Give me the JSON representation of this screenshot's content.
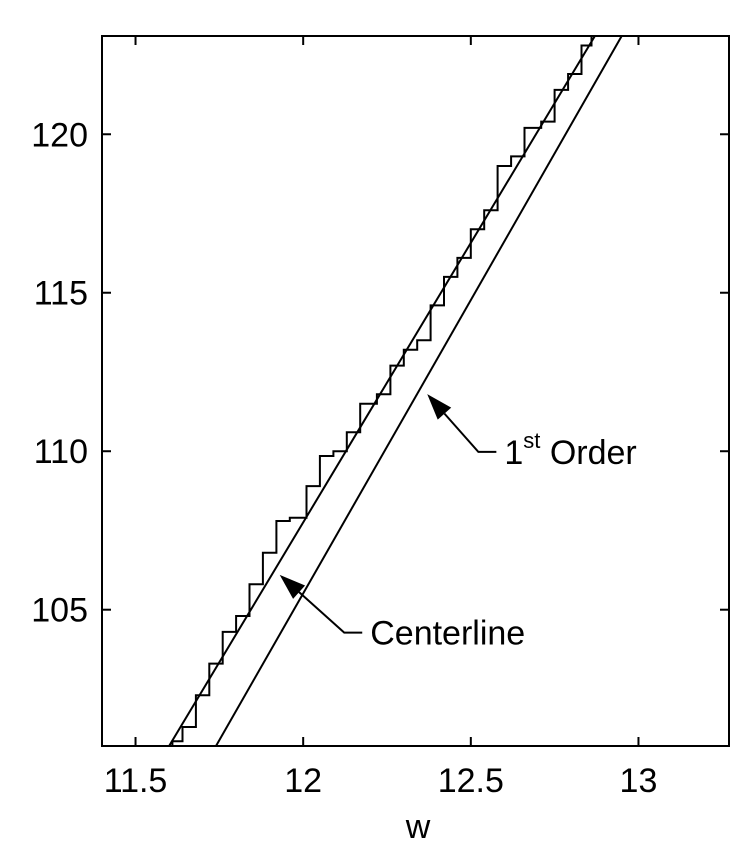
{
  "chart_data": {
    "type": "line",
    "title": "",
    "xlabel": "w",
    "ylabel": "",
    "xlim": [
      11.4,
      13.27
    ],
    "ylim": [
      100.7,
      123.1
    ],
    "x_ticks": [
      11.5,
      12,
      12.5,
      13
    ],
    "x_tick_labels": [
      "11.5",
      "12",
      "12.5",
      "13"
    ],
    "y_ticks": [
      105,
      110,
      115,
      120
    ],
    "y_tick_labels": [
      "105",
      "110",
      "115",
      "120"
    ],
    "grid": false,
    "legend": "none",
    "series": [
      {
        "style": "step",
        "points": [
          [
            11.61,
            100.7
          ],
          [
            11.61,
            100.85
          ],
          [
            11.64,
            100.85
          ],
          [
            11.64,
            101.3
          ],
          [
            11.68,
            101.3
          ],
          [
            11.68,
            102.3
          ],
          [
            11.72,
            102.3
          ],
          [
            11.72,
            103.3
          ],
          [
            11.76,
            103.3
          ],
          [
            11.76,
            104.3
          ],
          [
            11.8,
            104.3
          ],
          [
            11.8,
            104.8
          ],
          [
            11.84,
            104.8
          ],
          [
            11.84,
            105.8
          ],
          [
            11.88,
            105.8
          ],
          [
            11.88,
            106.8
          ],
          [
            11.92,
            106.8
          ],
          [
            11.92,
            107.8
          ],
          [
            11.96,
            107.8
          ],
          [
            11.96,
            107.9
          ],
          [
            12.01,
            107.9
          ],
          [
            12.01,
            108.9
          ],
          [
            12.05,
            108.9
          ],
          [
            12.05,
            109.85
          ],
          [
            12.09,
            109.85
          ],
          [
            12.09,
            110.0
          ],
          [
            12.13,
            110.0
          ],
          [
            12.13,
            110.6
          ],
          [
            12.17,
            110.6
          ],
          [
            12.17,
            111.5
          ],
          [
            12.22,
            111.5
          ],
          [
            12.22,
            111.8
          ],
          [
            12.26,
            111.8
          ],
          [
            12.26,
            112.7
          ],
          [
            12.3,
            112.7
          ],
          [
            12.3,
            113.2
          ],
          [
            12.34,
            113.2
          ],
          [
            12.34,
            113.5
          ],
          [
            12.38,
            113.5
          ],
          [
            12.38,
            114.6
          ],
          [
            12.42,
            114.6
          ],
          [
            12.42,
            115.5
          ],
          [
            12.46,
            115.5
          ],
          [
            12.46,
            116.1
          ],
          [
            12.5,
            116.1
          ],
          [
            12.5,
            117.0
          ],
          [
            12.54,
            117.0
          ],
          [
            12.54,
            117.6
          ],
          [
            12.58,
            117.6
          ],
          [
            12.58,
            119.0
          ],
          [
            12.62,
            119.0
          ],
          [
            12.62,
            119.3
          ],
          [
            12.66,
            119.3
          ],
          [
            12.66,
            120.2
          ],
          [
            12.71,
            120.2
          ],
          [
            12.71,
            120.4
          ],
          [
            12.75,
            120.4
          ],
          [
            12.75,
            121.4
          ],
          [
            12.79,
            121.4
          ],
          [
            12.79,
            121.9
          ],
          [
            12.83,
            121.9
          ],
          [
            12.83,
            122.8
          ],
          [
            12.86,
            122.8
          ],
          [
            12.86,
            123.1
          ]
        ]
      },
      {
        "style": "line",
        "points": [
          [
            11.6,
            100.7
          ],
          [
            12.87,
            123.1
          ]
        ]
      },
      {
        "style": "line",
        "points": [
          [
            11.74,
            100.7
          ],
          [
            12.95,
            123.1
          ]
        ]
      }
    ],
    "annotations": [
      {
        "text": "Centerline",
        "x": 12.2,
        "y": 103.9,
        "arrow_to": [
          11.93,
          106.1
        ]
      },
      {
        "text": "1",
        "superscript": "st",
        "suffix": " Order",
        "x": 12.6,
        "y": 109.6,
        "arrow_to": [
          12.37,
          111.8
        ]
      }
    ]
  }
}
